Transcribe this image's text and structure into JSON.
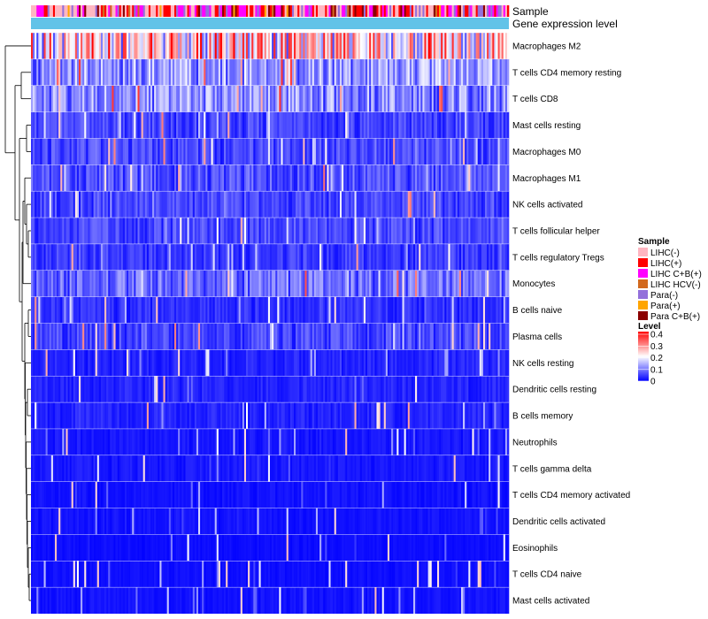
{
  "chart_data": {
    "type": "heatmap",
    "title": "",
    "annotation_rows": [
      "Sample",
      "Gene expression level"
    ],
    "rows": [
      {
        "label": "Macrophages M2",
        "mean": 0.25
      },
      {
        "label": "T cells CD4 memory resting",
        "mean": 0.13
      },
      {
        "label": "T cells CD8",
        "mean": 0.12
      },
      {
        "label": "Mast cells resting",
        "mean": 0.06
      },
      {
        "label": "Macrophages M0",
        "mean": 0.06
      },
      {
        "label": "Macrophages M1",
        "mean": 0.07
      },
      {
        "label": "NK cells activated",
        "mean": 0.06
      },
      {
        "label": "T cells follicular helper",
        "mean": 0.06
      },
      {
        "label": "T cells regulatory  Tregs",
        "mean": 0.05
      },
      {
        "label": "Monocytes",
        "mean": 0.09
      },
      {
        "label": "B cells naive",
        "mean": 0.04
      },
      {
        "label": "Plasma cells",
        "mean": 0.06
      },
      {
        "label": "NK cells resting",
        "mean": 0.03
      },
      {
        "label": "Dendritic cells resting",
        "mean": 0.03
      },
      {
        "label": "B cells memory",
        "mean": 0.03
      },
      {
        "label": "Neutrophils",
        "mean": 0.02
      },
      {
        "label": "T cells gamma delta",
        "mean": 0.02
      },
      {
        "label": "T cells CD4 memory activated",
        "mean": 0.015
      },
      {
        "label": "Dendritic cells activated",
        "mean": 0.015
      },
      {
        "label": "Eosinophils",
        "mean": 0.01
      },
      {
        "label": "T cells CD4 naive",
        "mean": 0.012
      },
      {
        "label": "Mast cells activated",
        "mean": 0.015
      }
    ],
    "sample_legend": {
      "title": "Sample",
      "items": [
        {
          "label": "LIHC(-)",
          "color": "#FFB6C1"
        },
        {
          "label": "LIHC(+)",
          "color": "#FF0000"
        },
        {
          "label": "LIHC C+B(+)",
          "color": "#FF00FF"
        },
        {
          "label": "LIHC HCV(-)",
          "color": "#D2691E"
        },
        {
          "label": "Para(-)",
          "color": "#9370DB"
        },
        {
          "label": "Para(+)",
          "color": "#FFA500"
        },
        {
          "label": "Para C+B(+)",
          "color": "#8B0000"
        }
      ]
    },
    "level_legend": {
      "title": "Level",
      "ticks": [
        "0.4",
        "0.3",
        "0.2",
        "0.1",
        "0"
      ],
      "tick_values": [
        0.4,
        0.3,
        0.2,
        0.1,
        0
      ],
      "range": [
        0,
        0.4
      ],
      "colors": [
        "#0000FF",
        "#FFFFFF",
        "#FF0000"
      ]
    },
    "gene_expression_color": "#62C3E8",
    "column_count": 260
  }
}
